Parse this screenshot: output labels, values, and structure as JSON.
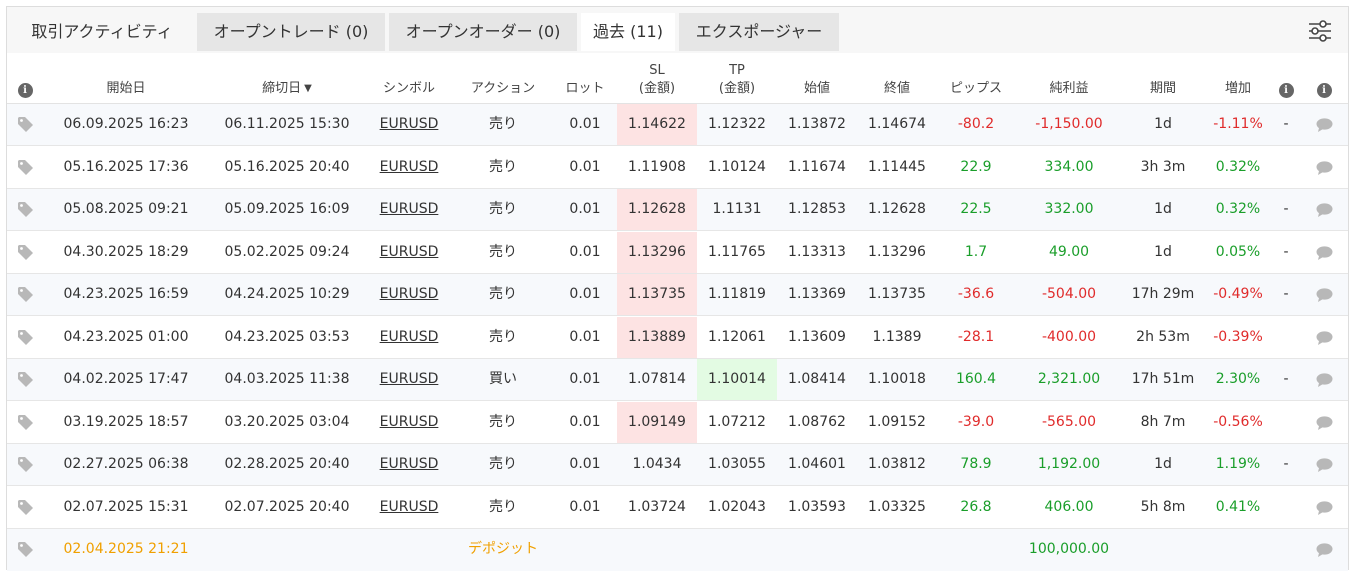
{
  "tabs": [
    {
      "label": "取引アクティビティ"
    },
    {
      "label": "オープントレード (0)"
    },
    {
      "label": "オープンオーダー (0)"
    },
    {
      "label": "過去 (11)"
    },
    {
      "label": "エクスポージャー"
    }
  ],
  "active_tab": "過去 (11)",
  "columns": {
    "open_date": "開始日",
    "close_date": "締切日",
    "close_date_sort": "▼",
    "symbol": "シンボル",
    "action": "アクション",
    "lot": "ロット",
    "sl_1": "SL",
    "sl_2": "(金額)",
    "tp_1": "TP",
    "tp_2": "(金額)",
    "open_price": "始値",
    "close_price": "終値",
    "pips": "ピップス",
    "profit": "純利益",
    "duration": "期間",
    "gain": "増加"
  },
  "rows": [
    {
      "open": "06.09.2025 16:23",
      "close": "06.11.2025 15:30",
      "symbol": "EURUSD",
      "action": "売り",
      "lot": "0.01",
      "sl": "1.14622",
      "tp": "1.12322",
      "open_price": "1.13872",
      "close_price": "1.14674",
      "pips": "-80.2",
      "profit": "-1,150.00",
      "duration": "1d",
      "gain": "-1.11%",
      "extra": "-",
      "sl_hit": true,
      "tp_hit": false,
      "neg": true
    },
    {
      "open": "05.16.2025 17:36",
      "close": "05.16.2025 20:40",
      "symbol": "EURUSD",
      "action": "売り",
      "lot": "0.01",
      "sl": "1.11908",
      "tp": "1.10124",
      "open_price": "1.11674",
      "close_price": "1.11445",
      "pips": "22.9",
      "profit": "334.00",
      "duration": "3h 3m",
      "gain": "0.32%",
      "extra": "",
      "sl_hit": false,
      "tp_hit": false,
      "neg": false
    },
    {
      "open": "05.08.2025 09:21",
      "close": "05.09.2025 16:09",
      "symbol": "EURUSD",
      "action": "売り",
      "lot": "0.01",
      "sl": "1.12628",
      "tp": "1.1131",
      "open_price": "1.12853",
      "close_price": "1.12628",
      "pips": "22.5",
      "profit": "332.00",
      "duration": "1d",
      "gain": "0.32%",
      "extra": "-",
      "sl_hit": true,
      "tp_hit": false,
      "neg": false
    },
    {
      "open": "04.30.2025 18:29",
      "close": "05.02.2025 09:24",
      "symbol": "EURUSD",
      "action": "売り",
      "lot": "0.01",
      "sl": "1.13296",
      "tp": "1.11765",
      "open_price": "1.13313",
      "close_price": "1.13296",
      "pips": "1.7",
      "profit": "49.00",
      "duration": "1d",
      "gain": "0.05%",
      "extra": "-",
      "sl_hit": true,
      "tp_hit": false,
      "neg": false
    },
    {
      "open": "04.23.2025 16:59",
      "close": "04.24.2025 10:29",
      "symbol": "EURUSD",
      "action": "売り",
      "lot": "0.01",
      "sl": "1.13735",
      "tp": "1.11819",
      "open_price": "1.13369",
      "close_price": "1.13735",
      "pips": "-36.6",
      "profit": "-504.00",
      "duration": "17h 29m",
      "gain": "-0.49%",
      "extra": "-",
      "sl_hit": true,
      "tp_hit": false,
      "neg": true
    },
    {
      "open": "04.23.2025 01:00",
      "close": "04.23.2025 03:53",
      "symbol": "EURUSD",
      "action": "売り",
      "lot": "0.01",
      "sl": "1.13889",
      "tp": "1.12061",
      "open_price": "1.13609",
      "close_price": "1.1389",
      "pips": "-28.1",
      "profit": "-400.00",
      "duration": "2h 53m",
      "gain": "-0.39%",
      "extra": "",
      "sl_hit": true,
      "tp_hit": false,
      "neg": true
    },
    {
      "open": "04.02.2025 17:47",
      "close": "04.03.2025 11:38",
      "symbol": "EURUSD",
      "action": "買い",
      "lot": "0.01",
      "sl": "1.07814",
      "tp": "1.10014",
      "open_price": "1.08414",
      "close_price": "1.10018",
      "pips": "160.4",
      "profit": "2,321.00",
      "duration": "17h 51m",
      "gain": "2.30%",
      "extra": "-",
      "sl_hit": false,
      "tp_hit": true,
      "neg": false
    },
    {
      "open": "03.19.2025 18:57",
      "close": "03.20.2025 03:04",
      "symbol": "EURUSD",
      "action": "売り",
      "lot": "0.01",
      "sl": "1.09149",
      "tp": "1.07212",
      "open_price": "1.08762",
      "close_price": "1.09152",
      "pips": "-39.0",
      "profit": "-565.00",
      "duration": "8h 7m",
      "gain": "-0.56%",
      "extra": "",
      "sl_hit": true,
      "tp_hit": false,
      "neg": true
    },
    {
      "open": "02.27.2025 06:38",
      "close": "02.28.2025 20:40",
      "symbol": "EURUSD",
      "action": "売り",
      "lot": "0.01",
      "sl": "1.0434",
      "tp": "1.03055",
      "open_price": "1.04601",
      "close_price": "1.03812",
      "pips": "78.9",
      "profit": "1,192.00",
      "duration": "1d",
      "gain": "1.19%",
      "extra": "-",
      "sl_hit": false,
      "tp_hit": false,
      "neg": false
    },
    {
      "open": "02.07.2025 15:31",
      "close": "02.07.2025 20:40",
      "symbol": "EURUSD",
      "action": "売り",
      "lot": "0.01",
      "sl": "1.03724",
      "tp": "1.02043",
      "open_price": "1.03593",
      "close_price": "1.03325",
      "pips": "26.8",
      "profit": "406.00",
      "duration": "5h 8m",
      "gain": "0.41%",
      "extra": "",
      "sl_hit": false,
      "tp_hit": false,
      "neg": false
    }
  ],
  "deposit": {
    "date": "02.04.2025 21:21",
    "label": "デポジット",
    "amount": "100,000.00"
  },
  "colors": {
    "positive": "#1a9e2a",
    "negative": "#e02b2b",
    "deposit": "#f0a000",
    "sl_highlight": "#fde3e3",
    "tp_highlight": "#e3fbe3"
  },
  "icons": {
    "settings": "sliders-icon",
    "info": "info-icon",
    "tag": "tag-icon",
    "comment": "comment-icon"
  }
}
